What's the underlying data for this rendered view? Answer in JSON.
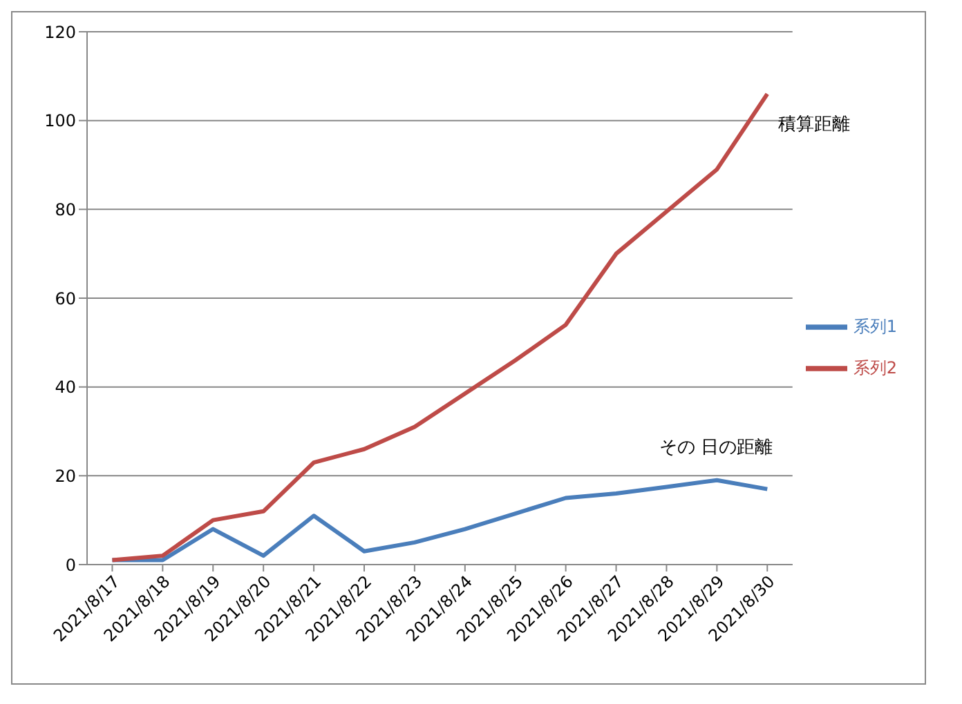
{
  "chart_data": {
    "type": "line",
    "categories": [
      "2021/8/17",
      "2021/8/18",
      "2021/8/19",
      "2021/8/20",
      "2021/8/21",
      "2021/8/22",
      "2021/8/23",
      "2021/8/24",
      "2021/8/25",
      "2021/8/26",
      "2021/8/27",
      "2021/8/28",
      "2021/8/29",
      "2021/8/30"
    ],
    "series": [
      {
        "name": "系列1",
        "color": "#4a7ebb",
        "values": [
          1,
          1,
          8,
          2,
          11,
          3,
          5,
          8,
          11.5,
          15,
          16,
          17.5,
          19,
          17
        ]
      },
      {
        "name": "系列2",
        "color": "#be4b48",
        "values": [
          1,
          2,
          10,
          12,
          23,
          26,
          31,
          38.5,
          46,
          54,
          70,
          79.5,
          89,
          106
        ]
      }
    ],
    "ylim": [
      0,
      120
    ],
    "yticks": [
      0,
      20,
      40,
      60,
      80,
      100,
      120
    ],
    "grid": "y",
    "legend": "right",
    "marker": "none",
    "line_style": "solid",
    "annotations": [
      "積算距離",
      "その 日の距離"
    ]
  }
}
